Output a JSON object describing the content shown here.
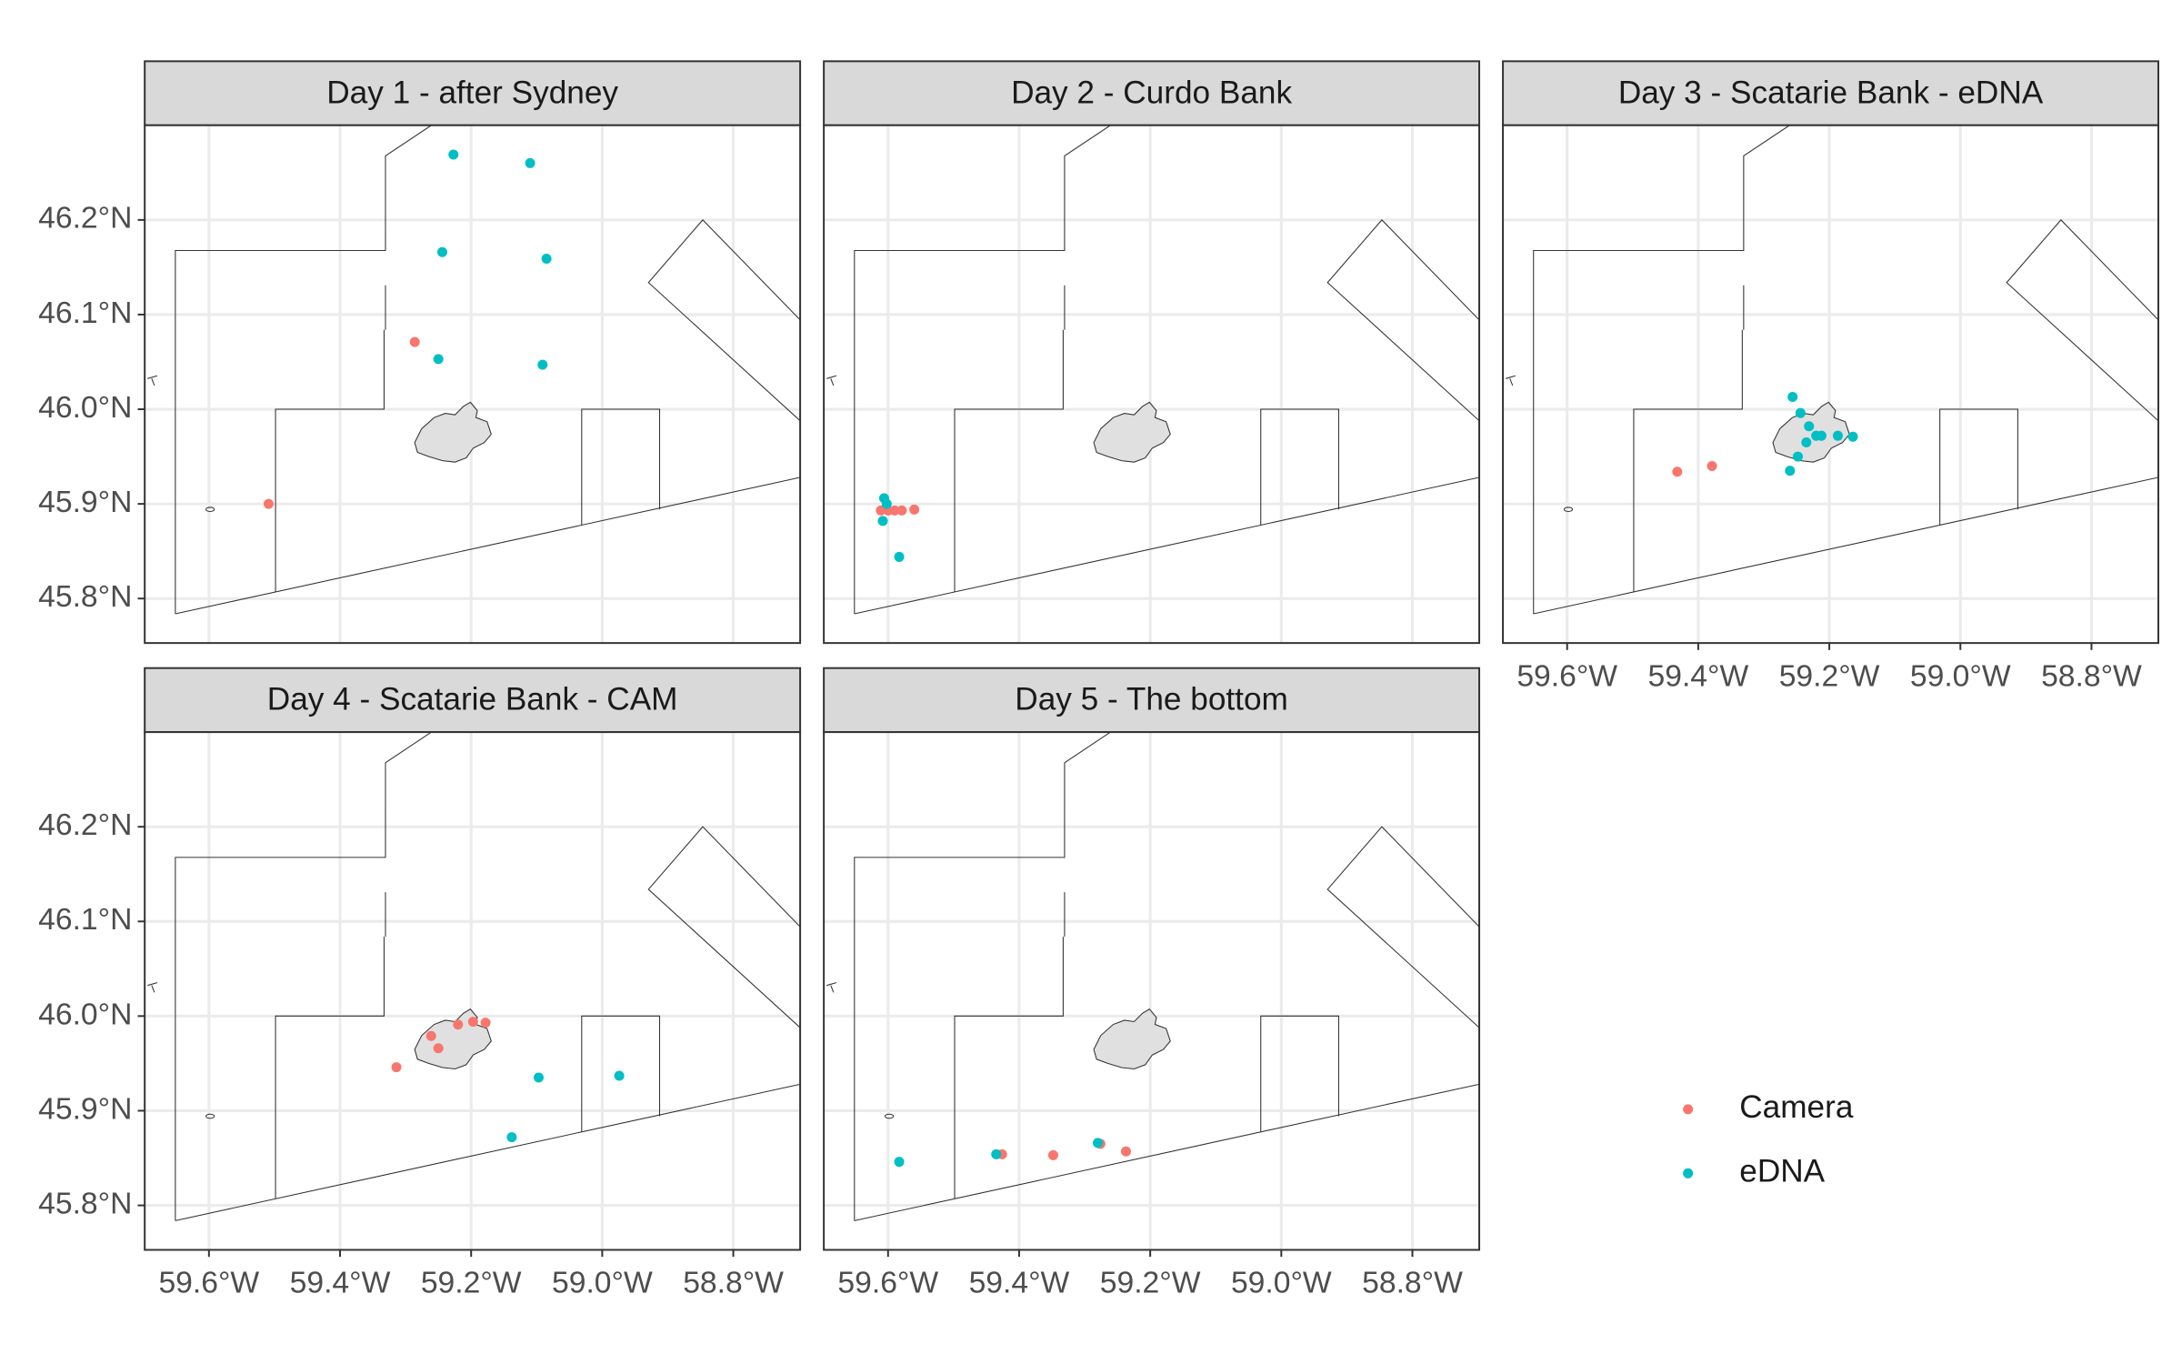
{
  "chart_data": {
    "type": "scatter",
    "xlim": [
      -59.698,
      -58.698
    ],
    "ylim": [
      45.753,
      46.3
    ],
    "xticks": [
      {
        "value": -59.6,
        "label": "59.6°W"
      },
      {
        "value": -59.4,
        "label": "59.4°W"
      },
      {
        "value": -59.2,
        "label": "59.2°W"
      },
      {
        "value": -59.0,
        "label": "59.0°W"
      },
      {
        "value": -58.8,
        "label": "58.8°W"
      }
    ],
    "yticks": [
      {
        "value": 45.8,
        "label": "45.8°N"
      },
      {
        "value": 45.9,
        "label": "45.9°N"
      },
      {
        "value": 46.0,
        "label": "46.0°N"
      },
      {
        "value": 46.1,
        "label": "46.1°N"
      },
      {
        "value": 46.2,
        "label": "46.2°N"
      }
    ],
    "grid": true,
    "series": [
      {
        "name": "Camera",
        "color": "#F8766D"
      },
      {
        "name": "eDNA",
        "color": "#00BFC4"
      }
    ],
    "facets": [
      {
        "title": "Day 1 - after Sydney",
        "series": [
          {
            "x": [
              -59.286,
              -59.509
            ],
            "values": [
              46.071,
              45.9
            ]
          },
          {
            "x": [
              -59.227,
              -59.11,
              -59.244,
              -59.085,
              -59.25,
              -59.091
            ],
            "values": [
              46.269,
              46.26,
              46.166,
              46.159,
              46.053,
              46.047
            ]
          }
        ]
      },
      {
        "title": "Day 2 - Curdo Bank",
        "series": [
          {
            "x": [
              -59.611,
              -59.6,
              -59.59,
              -59.579,
              -59.56
            ],
            "values": [
              45.893,
              45.893,
              45.893,
              45.893,
              45.894
            ]
          },
          {
            "x": [
              -59.606,
              -59.602,
              -59.608,
              -59.583
            ],
            "values": [
              45.906,
              45.9,
              45.882,
              45.844
            ]
          }
        ]
      },
      {
        "title": "Day 3 - Scatarie Bank - eDNA",
        "series": [
          {
            "x": [
              -59.432,
              -59.379
            ],
            "values": [
              45.934,
              45.94
            ]
          },
          {
            "x": [
              -59.256,
              -59.244,
              -59.231,
              -59.235,
              -59.22,
              -59.212,
              -59.187,
              -59.164,
              -59.248,
              -59.26
            ],
            "values": [
              46.013,
              45.996,
              45.982,
              45.965,
              45.972,
              45.972,
              45.972,
              45.971,
              45.95,
              45.935
            ]
          }
        ]
      },
      {
        "title": "Day 4 - Scatarie Bank - CAM",
        "series": [
          {
            "x": [
              -59.314,
              -59.261,
              -59.25,
              -59.22,
              -59.197,
              -59.178
            ],
            "values": [
              45.946,
              45.979,
              45.966,
              45.991,
              45.994,
              45.993
            ]
          },
          {
            "x": [
              -59.097,
              -58.974,
              -59.138
            ],
            "values": [
              45.935,
              45.937,
              45.872
            ]
          }
        ]
      },
      {
        "title": "Day 5 - The bottom",
        "series": [
          {
            "x": [
              -59.426,
              -59.348,
              -59.276,
              -59.237
            ],
            "values": [
              45.854,
              45.853,
              45.865,
              45.857
            ]
          },
          {
            "x": [
              -59.583,
              -59.435,
              -59.28
            ],
            "values": [
              45.846,
              45.854,
              45.866
            ]
          }
        ]
      }
    ]
  }
}
